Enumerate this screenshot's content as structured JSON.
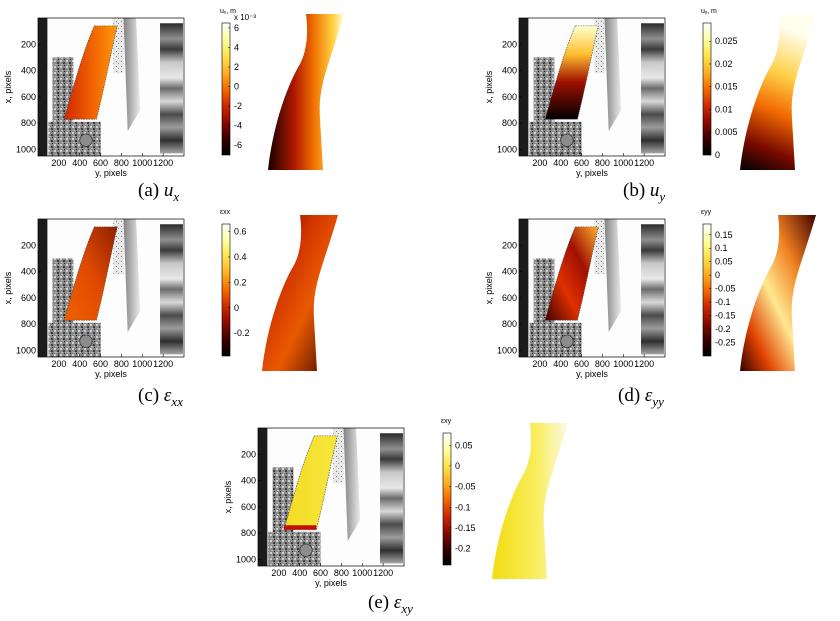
{
  "axes": {
    "xlabel": "y, pixels",
    "ylabel": "x, pixels",
    "xticks": [
      "200",
      "400",
      "600",
      "800",
      "1000",
      "1200"
    ],
    "yticks": [
      "200",
      "400",
      "600",
      "800",
      "1000"
    ]
  },
  "colors": {
    "colormap": [
      "#000000",
      "#3a0000",
      "#8a0a00",
      "#d02800",
      "#f46a00",
      "#ffb020",
      "#ffe14a",
      "#ffffa0",
      "#ffffff"
    ],
    "background": "#ffffff"
  },
  "panels": [
    {
      "id": "a",
      "caption_label": "(a)",
      "caption_symbol": "u",
      "caption_sub": "x",
      "colorbar": {
        "title": "uₓ, m",
        "exponent": "x 10⁻³",
        "ticks": [
          "6",
          "4",
          "2",
          "0",
          "-2",
          "-4",
          "-6"
        ],
        "range": [
          -7,
          6.5
        ]
      }
    },
    {
      "id": "b",
      "caption_label": "(b)",
      "caption_symbol": "u",
      "caption_sub": "y",
      "colorbar": {
        "title": "uᵧ, m",
        "exponent": "",
        "ticks": [
          "0.025",
          "0.02",
          "0.015",
          "0.01",
          "0.005",
          "0"
        ],
        "range": [
          0,
          0.029
        ]
      }
    },
    {
      "id": "c",
      "caption_label": "(c)",
      "caption_symbol": "ε",
      "caption_sub": "xx",
      "colorbar": {
        "title": "εxx",
        "exponent": "",
        "ticks": [
          "0.6",
          "0.4",
          "0.2",
          "0",
          "-0.2"
        ],
        "range": [
          -0.38,
          0.66
        ]
      }
    },
    {
      "id": "d",
      "caption_label": "(d)",
      "caption_symbol": "ε",
      "caption_sub": "yy",
      "colorbar": {
        "title": "εyy",
        "exponent": "",
        "ticks": [
          "0.15",
          "0.1",
          "0.05",
          "0",
          "-0.05",
          "-0.1",
          "-0.15",
          "-0.2",
          "-0.25"
        ],
        "range": [
          -0.3,
          0.19
        ]
      }
    },
    {
      "id": "e",
      "caption_label": "(e)",
      "caption_symbol": "ε",
      "caption_sub": "xy",
      "colorbar": {
        "title": "εxy",
        "exponent": "",
        "ticks": [
          "0.05",
          "0",
          "-0.05",
          "-0.1",
          "-0.15",
          "-0.2"
        ],
        "range": [
          -0.24,
          0.08
        ]
      }
    }
  ]
}
